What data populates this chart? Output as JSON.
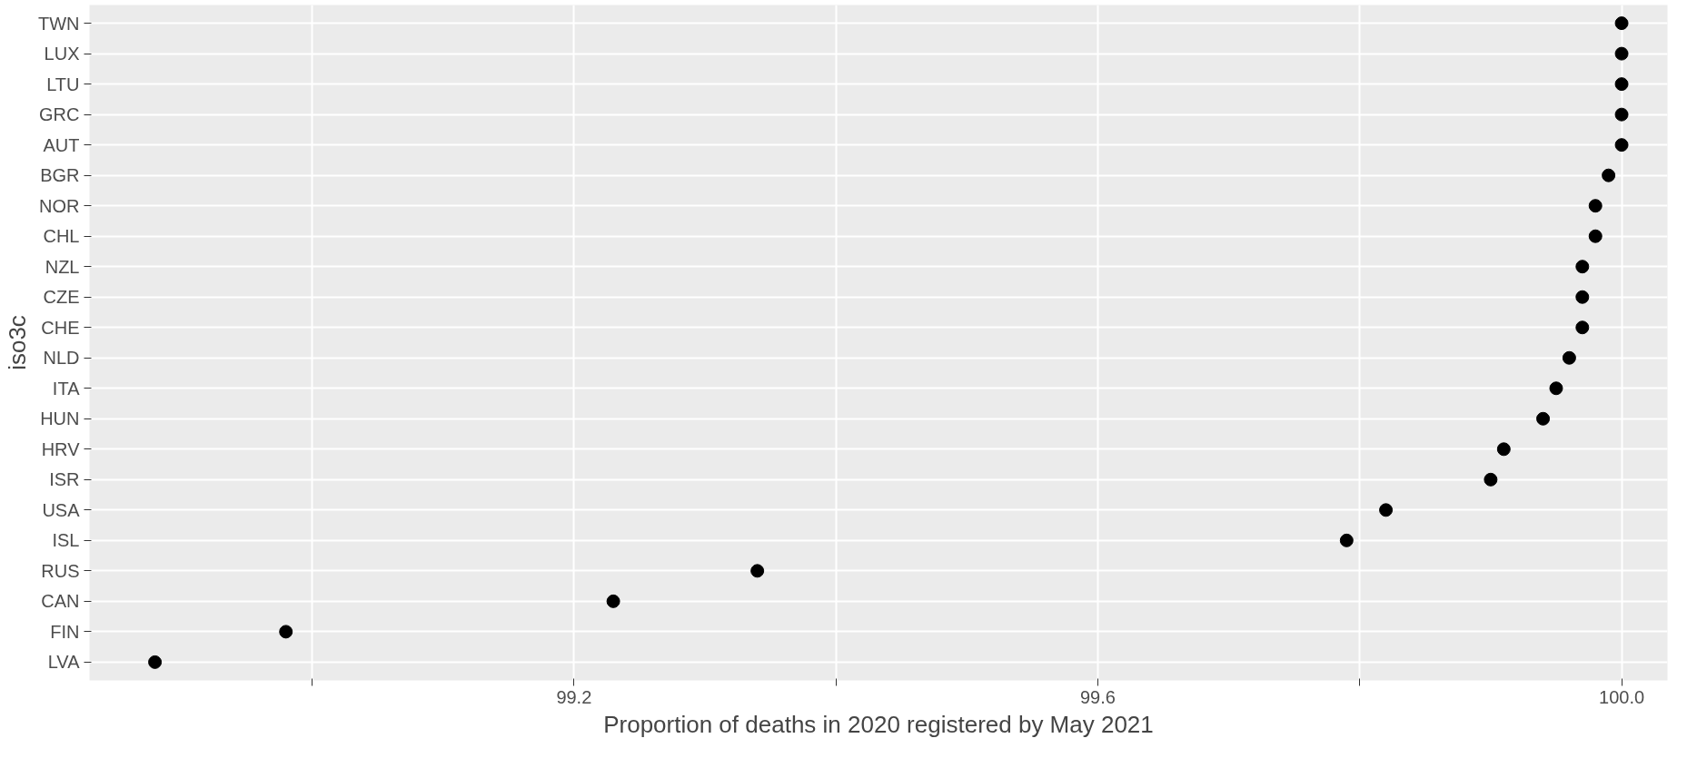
{
  "chart_data": {
    "type": "scatter",
    "xlabel": "Proportion of deaths in 2020 registered by May 2021",
    "ylabel": "iso3c",
    "categories": [
      "TWN",
      "LUX",
      "LTU",
      "GRC",
      "AUT",
      "BGR",
      "NOR",
      "CHL",
      "NZL",
      "CZE",
      "CHE",
      "NLD",
      "ITA",
      "HUN",
      "HRV",
      "ISR",
      "USA",
      "ISL",
      "RUS",
      "CAN",
      "FIN",
      "LVA"
    ],
    "orientation": "horizontal",
    "series": [
      {
        "color": "#000000",
        "values": [
          100.0,
          100.0,
          100.0,
          100.0,
          100.0,
          99.99,
          99.98,
          99.98,
          99.97,
          99.97,
          99.97,
          99.96,
          99.95,
          99.94,
          99.91,
          99.9,
          99.82,
          99.79,
          99.34,
          99.23,
          98.98,
          98.88
        ]
      }
    ],
    "xlim": [
      98.83,
      100.035
    ],
    "xticks": [
      {
        "value": 99.0,
        "label": null
      },
      99.2,
      {
        "value": 99.4,
        "label": null
      },
      99.6,
      {
        "value": 99.8,
        "label": null
      },
      {
        "value": 100.0,
        "label": "100.0"
      }
    ],
    "grid": true,
    "marker": "circle"
  }
}
